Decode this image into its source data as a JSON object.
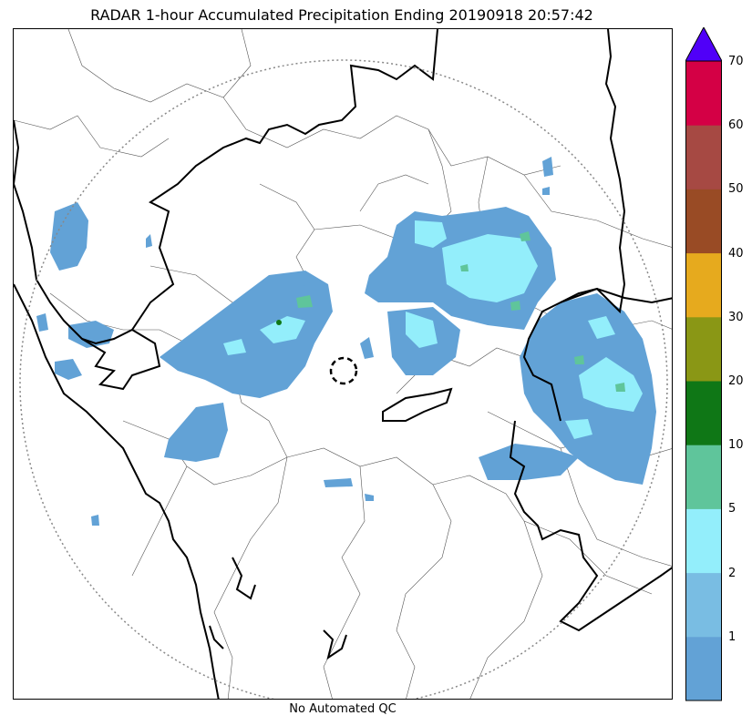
{
  "title": "RADAR 1-hour Accumulated Precipitation Ending 20190918 20:57:42",
  "footer": "No Automated QC",
  "colorbar": {
    "ticks": [
      "1",
      "2",
      "5",
      "10",
      "20",
      "30",
      "40",
      "50",
      "60",
      "70"
    ],
    "colors": [
      "#62a2d6",
      "#79bde3",
      "#93eefb",
      "#5fc59b",
      "#0f7716",
      "#8a9715",
      "#e6aa1e",
      "#994b25",
      "#a64943",
      "#d40045"
    ],
    "extend_color": "#5000f8"
  },
  "map": {
    "radar_site": "dashed-circle",
    "range_ring": "dotted",
    "precip_colors": {
      "light": "#62a2d6",
      "moderate": "#93eefb",
      "heavy": "#5fc59b",
      "very_heavy": "#0f7716"
    }
  }
}
